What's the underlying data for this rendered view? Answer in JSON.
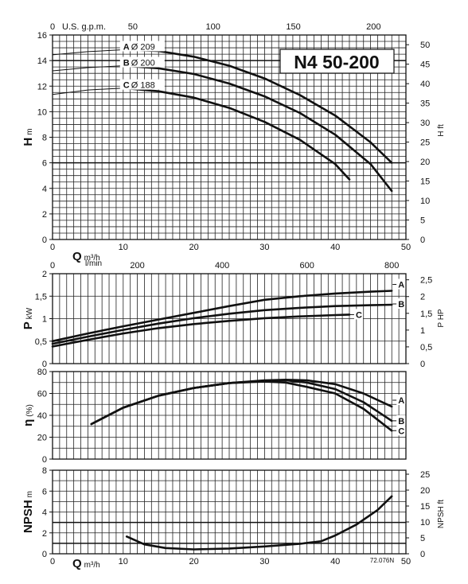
{
  "model": "N4 50-200",
  "doc_code": "72.076N",
  "chart_data": [
    {
      "type": "line",
      "panel": "head",
      "xlabel": "Q",
      "xunit": "m³/h",
      "xlim": [
        0,
        50
      ],
      "x_ticks": [
        "0",
        "10",
        "20",
        "30",
        "40",
        "50"
      ],
      "top_axis": {
        "label": "U.S. g.p.m.",
        "ticks": [
          "0",
          "50",
          "100",
          "150",
          "200"
        ],
        "values": [
          0,
          50,
          100,
          150,
          200
        ]
      },
      "ylabel": "H",
      "yunit": "m",
      "ylim": [
        0,
        16
      ],
      "y_ticks": [
        "0",
        "2",
        "4",
        "6",
        "8",
        "10",
        "12",
        "14",
        "16"
      ],
      "y2label": "H ft",
      "y2_ticks": [
        "0",
        "5",
        "10",
        "15",
        "20",
        "25",
        "30",
        "35",
        "40",
        "45",
        "50"
      ],
      "y2_values": [
        0,
        5,
        10,
        15,
        20,
        25,
        30,
        35,
        40,
        45,
        50
      ],
      "series": [
        {
          "name": "A",
          "diameter_label": "Ø 209",
          "x": [
            10,
            15,
            20,
            25,
            30,
            35,
            40,
            45,
            48
          ],
          "y": [
            14.85,
            14.75,
            14.3,
            13.6,
            12.6,
            11.3,
            9.7,
            7.6,
            6.0
          ]
        },
        {
          "name": "B",
          "diameter_label": "Ø 200",
          "x": [
            10,
            15,
            20,
            25,
            30,
            35,
            40,
            45,
            48
          ],
          "y": [
            13.6,
            13.4,
            12.95,
            12.2,
            11.2,
            9.9,
            8.2,
            5.9,
            3.8
          ]
        },
        {
          "name": "C",
          "diameter_label": "Ø 188",
          "x": [
            10,
            15,
            20,
            25,
            30,
            35,
            40,
            42
          ],
          "y": [
            11.85,
            11.6,
            11.1,
            10.3,
            9.2,
            7.8,
            5.9,
            4.7
          ]
        }
      ],
      "thin_curves": [
        {
          "name": "A",
          "x": [
            0,
            5,
            10
          ],
          "y": [
            14.45,
            14.7,
            14.85
          ]
        },
        {
          "name": "B",
          "x": [
            0,
            5,
            10
          ],
          "y": [
            13.2,
            13.45,
            13.6
          ]
        },
        {
          "name": "C",
          "x": [
            0,
            5,
            10
          ],
          "y": [
            11.35,
            11.7,
            11.85
          ]
        }
      ]
    },
    {
      "type": "line",
      "panel": "power",
      "top_axis": {
        "label": "l/min",
        "ticks": [
          "0",
          "200",
          "400",
          "600",
          "800"
        ],
        "values": [
          0,
          200,
          400,
          600,
          800
        ]
      },
      "xlim": [
        0,
        50
      ],
      "ylabel": "P",
      "yunit": "kW",
      "ylim": [
        0,
        2
      ],
      "y_ticks": [
        "0",
        "0,5",
        "1",
        "1,5",
        "2"
      ],
      "y_values": [
        0,
        0.5,
        1,
        1.5,
        2
      ],
      "y2label": "P HP",
      "y2_ticks": [
        "0",
        "0,5",
        "1",
        "1,5",
        "2",
        "2,5"
      ],
      "y2_values": [
        0,
        0.5,
        1,
        1.5,
        2,
        2.5
      ],
      "series": [
        {
          "name": "A",
          "x": [
            0,
            5,
            10,
            15,
            20,
            25,
            30,
            35,
            40,
            45,
            48
          ],
          "y": [
            0.5,
            0.67,
            0.83,
            0.98,
            1.13,
            1.28,
            1.42,
            1.5,
            1.56,
            1.6,
            1.62
          ]
        },
        {
          "name": "B",
          "x": [
            0,
            5,
            10,
            15,
            20,
            25,
            30,
            35,
            40,
            45,
            48
          ],
          "y": [
            0.44,
            0.6,
            0.75,
            0.89,
            1.01,
            1.11,
            1.19,
            1.24,
            1.28,
            1.3,
            1.31
          ]
        },
        {
          "name": "C",
          "x": [
            0,
            5,
            10,
            15,
            20,
            25,
            30,
            35,
            40,
            42
          ],
          "y": [
            0.38,
            0.53,
            0.67,
            0.79,
            0.88,
            0.95,
            1.01,
            1.05,
            1.08,
            1.09
          ]
        }
      ]
    },
    {
      "type": "line",
      "panel": "efficiency",
      "xlim": [
        0,
        50
      ],
      "ylabel": "η",
      "yunit": "(%)",
      "ylim": [
        0,
        80
      ],
      "y_ticks": [
        "0",
        "20",
        "40",
        "60",
        "80"
      ],
      "series": [
        {
          "name": "A",
          "x": [
            5.5,
            10,
            15,
            20,
            25,
            30,
            33,
            36,
            40,
            44,
            48
          ],
          "y": [
            32,
            47,
            58,
            65,
            69.5,
            72,
            72.5,
            72,
            68.5,
            60,
            48
          ]
        },
        {
          "name": "B",
          "x": [
            5.5,
            10,
            15,
            20,
            25,
            30,
            33,
            36,
            40,
            44,
            48
          ],
          "y": [
            32,
            47,
            58,
            65,
            69.5,
            71.5,
            72,
            70,
            64,
            52,
            35
          ]
        },
        {
          "name": "C",
          "x": [
            5.5,
            10,
            15,
            20,
            25,
            30,
            33,
            36,
            40,
            44,
            48
          ],
          "y": [
            32,
            47,
            58,
            65,
            69.5,
            71,
            70,
            66,
            60,
            46,
            26
          ]
        }
      ]
    },
    {
      "type": "line",
      "panel": "npsh",
      "xlabel": "Q",
      "xunit": "m³/h",
      "xlim": [
        0,
        50
      ],
      "x_ticks": [
        "0",
        "10",
        "20",
        "30",
        "40",
        "50"
      ],
      "ylabel": "NPSH",
      "yunit": "m",
      "ylim": [
        0,
        8
      ],
      "y_ticks": [
        "0",
        "2",
        "4",
        "6",
        "8"
      ],
      "y2label": "NPSH ft",
      "y2_ticks": [
        "0",
        "5",
        "10",
        "15",
        "20",
        "25"
      ],
      "y2_values": [
        0,
        5,
        10,
        15,
        20,
        25
      ],
      "series": [
        {
          "name": "NPSH",
          "x": [
            10.5,
            13,
            16,
            20,
            25,
            30,
            35,
            38,
            40,
            43,
            46,
            48
          ],
          "y": [
            1.65,
            0.9,
            0.55,
            0.42,
            0.5,
            0.7,
            0.95,
            1.2,
            1.75,
            2.8,
            4.2,
            5.5
          ]
        }
      ]
    }
  ]
}
